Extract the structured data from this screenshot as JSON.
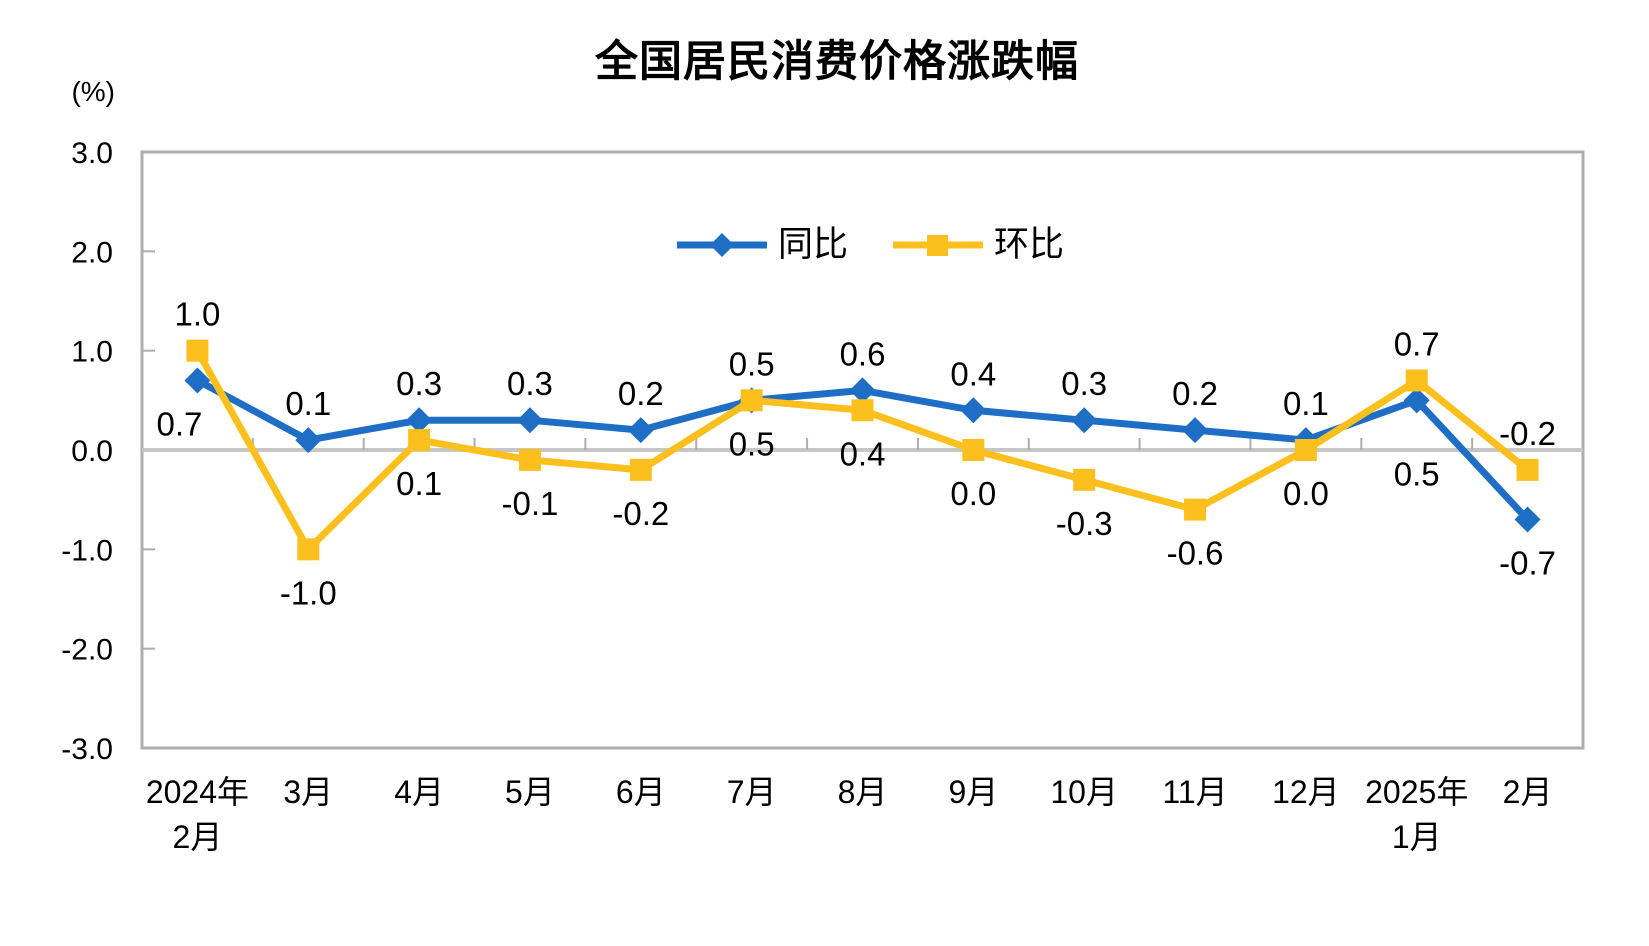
{
  "page": {
    "background": "#FFFFFF"
  },
  "title": "全国居民消费价格涨跌幅",
  "y_unit_label": "(%)",
  "chart_data": {
    "type": "line",
    "title": "全国居民消费价格涨跌幅",
    "ylabel": "(%)",
    "ylim": [
      -3.0,
      3.0
    ],
    "ytick_labels": [
      "3.0",
      "2.0",
      "1.0",
      "0.0",
      "-1.0",
      "-2.0",
      "-3.0"
    ],
    "yticks": [
      3.0,
      2.0,
      1.0,
      0.0,
      -1.0,
      -2.0,
      -3.0
    ],
    "grid": false,
    "zero_line": true,
    "legend_position": "top-center-inside",
    "categories": [
      [
        "2024年",
        "2月"
      ],
      [
        "3月"
      ],
      [
        "4月"
      ],
      [
        "5月"
      ],
      [
        "6月"
      ],
      [
        "7月"
      ],
      [
        "8月"
      ],
      [
        "9月"
      ],
      [
        "10月"
      ],
      [
        "11月"
      ],
      [
        "12月"
      ],
      [
        "2025年",
        "1月"
      ],
      [
        "2月"
      ]
    ],
    "series": [
      {
        "key": "yoy",
        "name": "同比",
        "color": "#1E6EC6",
        "marker": "diamond",
        "values": [
          0.7,
          0.1,
          0.3,
          0.3,
          0.2,
          0.5,
          0.6,
          0.4,
          0.3,
          0.2,
          0.1,
          0.5,
          -0.7
        ],
        "label_placements": [
          "below-left",
          "above",
          "above",
          "above",
          "above",
          "above",
          "above",
          "above",
          "above",
          "above",
          "above",
          "below-deep",
          "below"
        ]
      },
      {
        "key": "mom",
        "name": "环比",
        "color": "#FBC01D",
        "marker": "square",
        "values": [
          1.0,
          -1.0,
          0.1,
          -0.1,
          -0.2,
          0.5,
          0.4,
          0.0,
          -0.3,
          -0.6,
          0.0,
          0.7,
          -0.2
        ],
        "label_placements": [
          "above",
          "below",
          "below",
          "below",
          "below",
          "below",
          "below",
          "below",
          "below",
          "below",
          "below",
          "above",
          "above"
        ]
      }
    ],
    "axis_color": "#ADADAD",
    "zero_line_color": "#C6C6C6",
    "label_color": "#000000"
  }
}
